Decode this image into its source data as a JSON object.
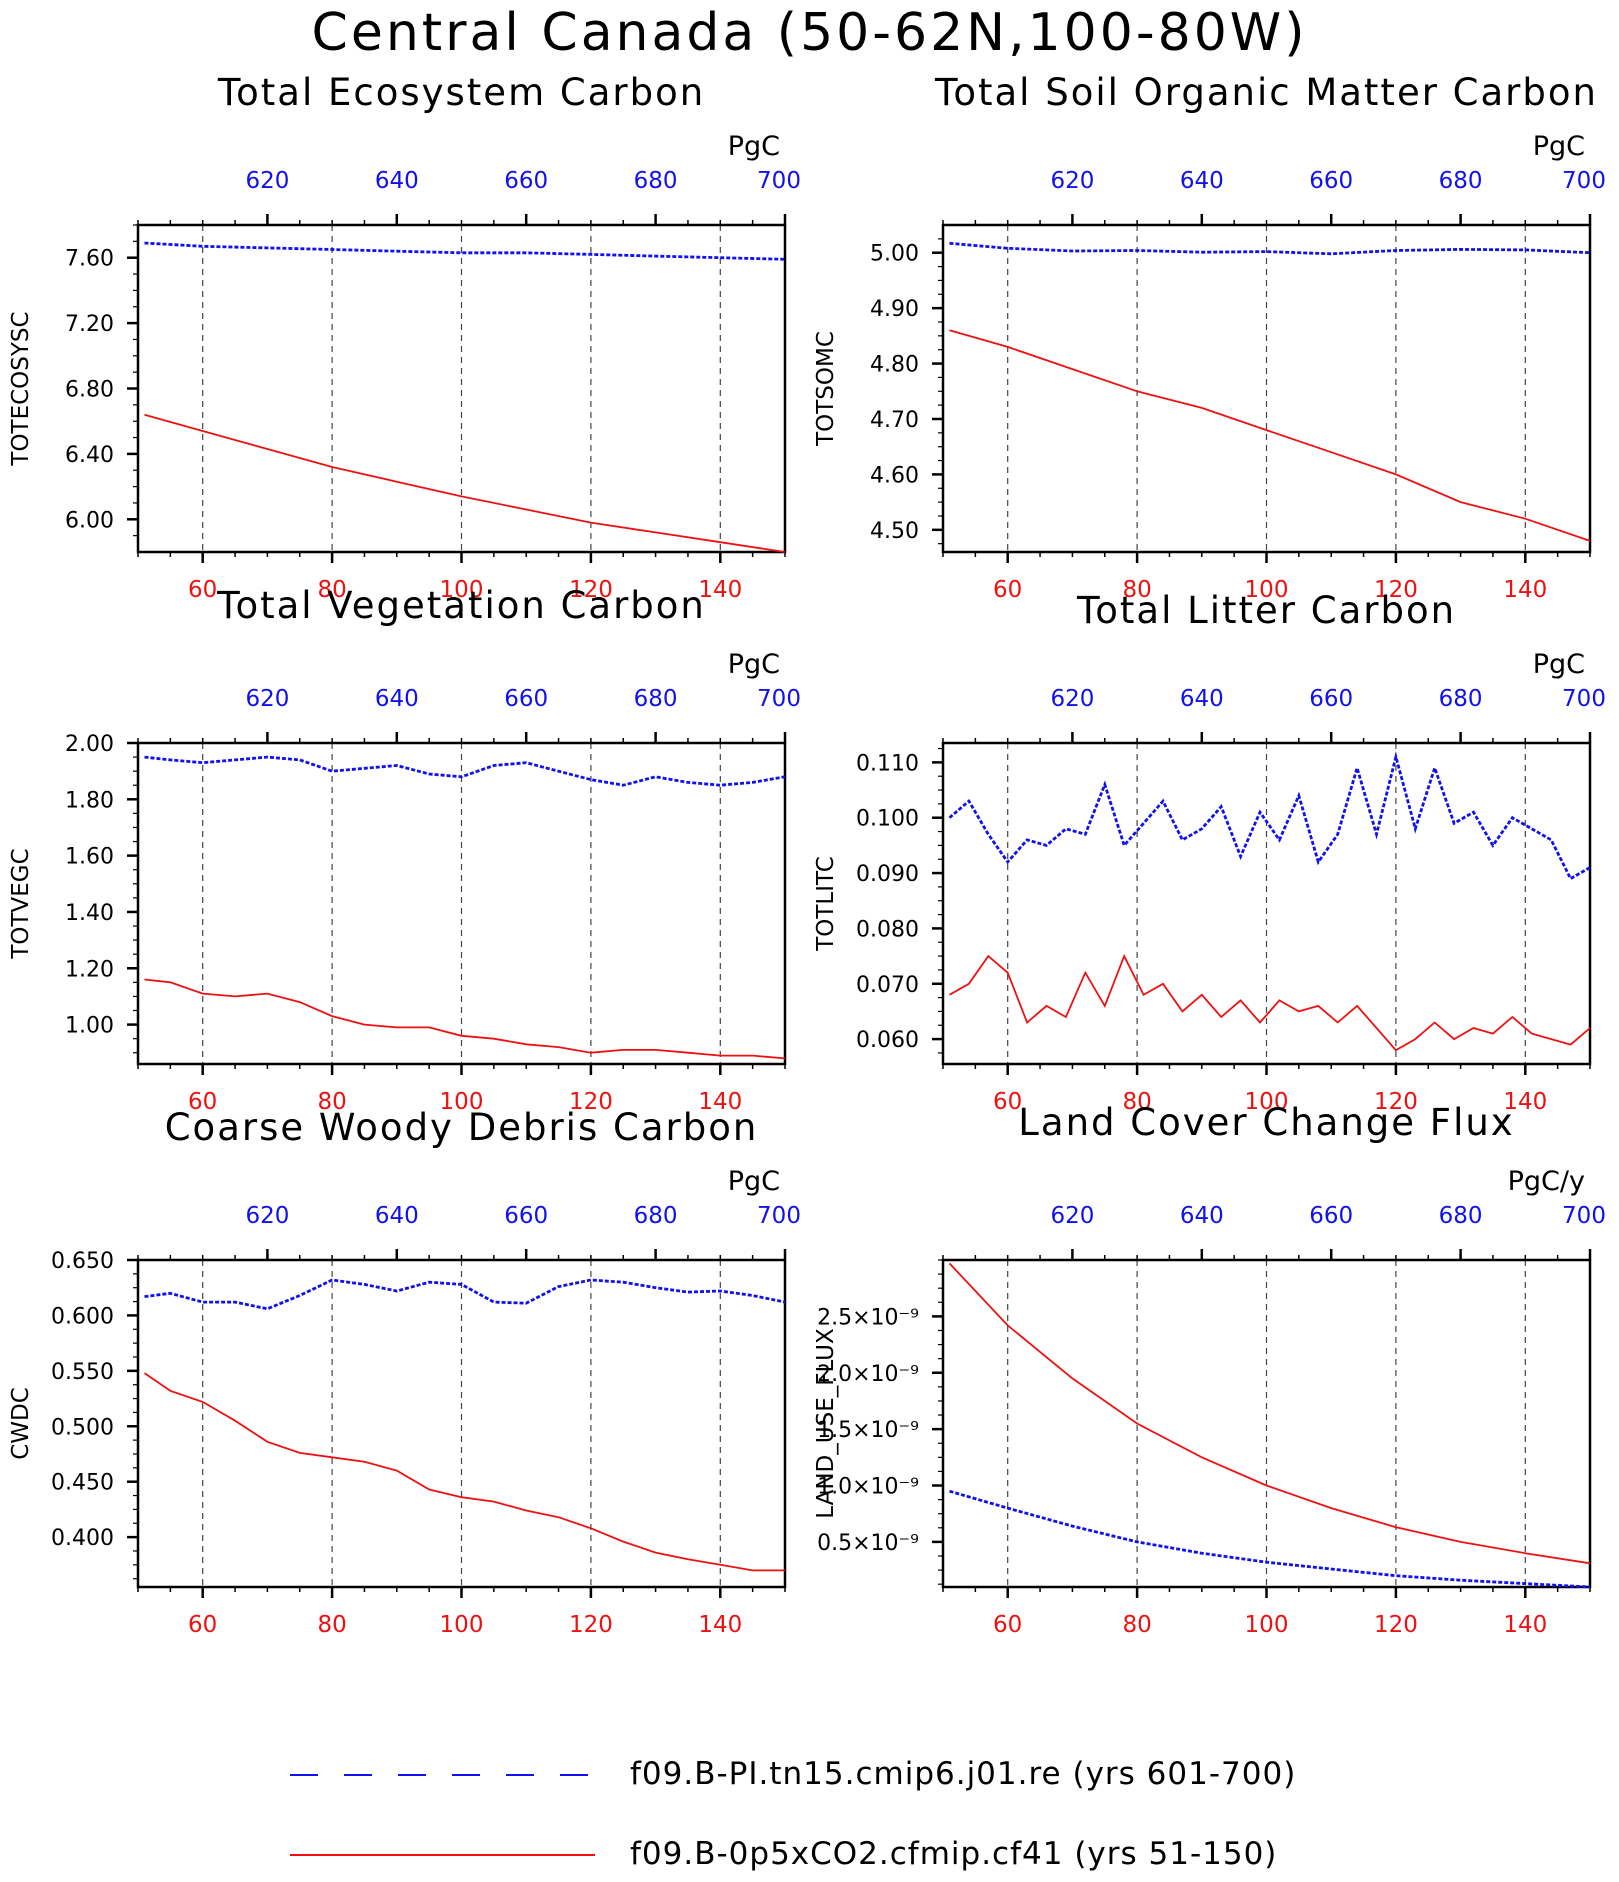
{
  "title": "Central Canada (50-62N,100-80W)",
  "colors": {
    "blue_series": "#1111ee",
    "red_series": "#ee1111",
    "grid": "#444444"
  },
  "legend": {
    "entries": [
      {
        "label": "f09.B-PI.tn15.cmip6.j01.re (yrs 601-700)",
        "color": "#1111ee",
        "style": "dashed"
      },
      {
        "label": "f09.B-0p5xCO2.cfmip.cf41 (yrs 51-150)",
        "color": "#ee1111",
        "style": "solid"
      }
    ]
  },
  "chart_data": [
    {
      "type": "line",
      "title": "Total Ecosystem Carbon",
      "ylabel": "TOTECOSYSC",
      "units": "PgC",
      "xlim": [
        50,
        150
      ],
      "top_xlim": [
        600,
        700
      ],
      "ylim": [
        5.8,
        7.8
      ],
      "yticks": [
        6.0,
        6.4,
        6.8,
        7.2,
        7.6
      ],
      "ytick_labels": [
        "6.00",
        "6.40",
        "6.80",
        "7.20",
        "7.60"
      ],
      "xticks": [
        60,
        80,
        100,
        120,
        140
      ],
      "top_xticks": [
        620,
        640,
        660,
        680,
        700
      ],
      "series": [
        {
          "color": "#1111ee",
          "style": "dashed",
          "x_axis": "top",
          "x": [
            601,
            610,
            620,
            630,
            640,
            650,
            660,
            670,
            680,
            690,
            700
          ],
          "y": [
            7.69,
            7.67,
            7.66,
            7.65,
            7.64,
            7.63,
            7.63,
            7.62,
            7.61,
            7.6,
            7.59
          ]
        },
        {
          "color": "#ee1111",
          "style": "solid",
          "x_axis": "bottom",
          "x": [
            51,
            60,
            70,
            80,
            90,
            100,
            110,
            120,
            130,
            140,
            150
          ],
          "y": [
            6.64,
            6.54,
            6.43,
            6.32,
            6.23,
            6.14,
            6.06,
            5.98,
            5.92,
            5.86,
            5.8
          ]
        }
      ]
    },
    {
      "type": "line",
      "title": "Total Soil Organic Matter Carbon",
      "ylabel": "TOTSOMC",
      "units": "PgC",
      "xlim": [
        50,
        150
      ],
      "top_xlim": [
        600,
        700
      ],
      "ylim": [
        4.46,
        5.05
      ],
      "yticks": [
        4.5,
        4.6,
        4.7,
        4.8,
        4.9,
        5.0
      ],
      "ytick_labels": [
        "4.50",
        "4.60",
        "4.70",
        "4.80",
        "4.90",
        "5.00"
      ],
      "xticks": [
        60,
        80,
        100,
        120,
        140
      ],
      "top_xticks": [
        620,
        640,
        660,
        680,
        700
      ],
      "series": [
        {
          "color": "#1111ee",
          "style": "dashed",
          "x_axis": "top",
          "x": [
            601,
            610,
            620,
            630,
            640,
            650,
            660,
            670,
            680,
            690,
            700
          ],
          "y": [
            5.017,
            5.008,
            5.003,
            5.004,
            5.001,
            5.002,
            4.998,
            5.004,
            5.006,
            5.005,
            5.0
          ]
        },
        {
          "color": "#ee1111",
          "style": "solid",
          "x_axis": "bottom",
          "x": [
            51,
            60,
            70,
            80,
            90,
            100,
            110,
            120,
            130,
            140,
            150
          ],
          "y": [
            4.86,
            4.83,
            4.79,
            4.75,
            4.72,
            4.68,
            4.64,
            4.6,
            4.55,
            4.52,
            4.48
          ]
        }
      ]
    },
    {
      "type": "line",
      "title": "Total Vegetation Carbon",
      "ylabel": "TOTVEGC",
      "units": "PgC",
      "xlim": [
        50,
        150
      ],
      "top_xlim": [
        600,
        700
      ],
      "ylim": [
        0.86,
        2.0
      ],
      "yticks": [
        1.0,
        1.2,
        1.4,
        1.6,
        1.8,
        2.0
      ],
      "ytick_labels": [
        "1.00",
        "1.20",
        "1.40",
        "1.60",
        "1.80",
        "2.00"
      ],
      "xticks": [
        60,
        80,
        100,
        120,
        140
      ],
      "top_xticks": [
        620,
        640,
        660,
        680,
        700
      ],
      "series": [
        {
          "color": "#1111ee",
          "style": "dashed",
          "x_axis": "top",
          "x": [
            601,
            605,
            610,
            615,
            620,
            625,
            630,
            635,
            640,
            645,
            650,
            655,
            660,
            665,
            670,
            675,
            680,
            685,
            690,
            695,
            700
          ],
          "y": [
            1.95,
            1.94,
            1.93,
            1.94,
            1.95,
            1.94,
            1.9,
            1.91,
            1.92,
            1.89,
            1.88,
            1.92,
            1.93,
            1.9,
            1.87,
            1.85,
            1.88,
            1.86,
            1.85,
            1.86,
            1.88
          ]
        },
        {
          "color": "#ee1111",
          "style": "solid",
          "x_axis": "bottom",
          "x": [
            51,
            55,
            60,
            65,
            70,
            75,
            80,
            85,
            90,
            95,
            100,
            105,
            110,
            115,
            120,
            125,
            130,
            135,
            140,
            145,
            150
          ],
          "y": [
            1.16,
            1.15,
            1.11,
            1.1,
            1.11,
            1.08,
            1.03,
            1.0,
            0.99,
            0.99,
            0.96,
            0.95,
            0.93,
            0.92,
            0.9,
            0.91,
            0.91,
            0.9,
            0.89,
            0.89,
            0.88
          ]
        }
      ]
    },
    {
      "type": "line",
      "title": "Total Litter Carbon",
      "ylabel": "TOTLITC",
      "units": "PgC",
      "xlim": [
        50,
        150
      ],
      "top_xlim": [
        600,
        700
      ],
      "ylim": [
        0.0555,
        0.1135
      ],
      "yticks": [
        0.06,
        0.07,
        0.08,
        0.09,
        0.1,
        0.11
      ],
      "ytick_labels": [
        "0.060",
        "0.070",
        "0.080",
        "0.090",
        "0.100",
        "0.110"
      ],
      "xticks": [
        60,
        80,
        100,
        120,
        140
      ],
      "top_xticks": [
        620,
        640,
        660,
        680,
        700
      ],
      "series": [
        {
          "color": "#1111ee",
          "style": "dashed",
          "x_axis": "top",
          "x": [
            601,
            604,
            607,
            610,
            613,
            616,
            619,
            622,
            625,
            628,
            631,
            634,
            637,
            640,
            643,
            646,
            649,
            652,
            655,
            658,
            661,
            664,
            667,
            670,
            673,
            676,
            679,
            682,
            685,
            688,
            691,
            694,
            697,
            700
          ],
          "y": [
            0.1,
            0.103,
            0.097,
            0.092,
            0.096,
            0.095,
            0.098,
            0.097,
            0.106,
            0.095,
            0.099,
            0.103,
            0.096,
            0.098,
            0.102,
            0.093,
            0.101,
            0.096,
            0.104,
            0.092,
            0.097,
            0.109,
            0.097,
            0.111,
            0.098,
            0.109,
            0.099,
            0.101,
            0.095,
            0.1,
            0.098,
            0.096,
            0.089,
            0.091
          ]
        },
        {
          "color": "#ee1111",
          "style": "solid",
          "x_axis": "bottom",
          "x": [
            51,
            54,
            57,
            60,
            63,
            66,
            69,
            72,
            75,
            78,
            81,
            84,
            87,
            90,
            93,
            96,
            99,
            102,
            105,
            108,
            111,
            114,
            117,
            120,
            123,
            126,
            129,
            132,
            135,
            138,
            141,
            144,
            147,
            150
          ],
          "y": [
            0.068,
            0.07,
            0.075,
            0.072,
            0.063,
            0.066,
            0.064,
            0.072,
            0.066,
            0.075,
            0.068,
            0.07,
            0.065,
            0.068,
            0.064,
            0.067,
            0.063,
            0.067,
            0.065,
            0.066,
            0.063,
            0.066,
            0.062,
            0.058,
            0.06,
            0.063,
            0.06,
            0.062,
            0.061,
            0.064,
            0.061,
            0.06,
            0.059,
            0.062
          ]
        }
      ]
    },
    {
      "type": "line",
      "title": "Coarse Woody Debris Carbon",
      "ylabel": "CWDC",
      "units": "PgC",
      "xlim": [
        50,
        150
      ],
      "top_xlim": [
        600,
        700
      ],
      "ylim": [
        0.355,
        0.65
      ],
      "yticks": [
        0.4,
        0.45,
        0.5,
        0.55,
        0.6,
        0.65
      ],
      "ytick_labels": [
        "0.400",
        "0.450",
        "0.500",
        "0.550",
        "0.600",
        "0.650"
      ],
      "xticks": [
        60,
        80,
        100,
        120,
        140
      ],
      "top_xticks": [
        620,
        640,
        660,
        680,
        700
      ],
      "series": [
        {
          "color": "#1111ee",
          "style": "dashed",
          "x_axis": "top",
          "x": [
            601,
            605,
            610,
            615,
            620,
            625,
            630,
            635,
            640,
            645,
            650,
            655,
            660,
            665,
            670,
            675,
            680,
            685,
            690,
            695,
            700
          ],
          "y": [
            0.617,
            0.62,
            0.612,
            0.612,
            0.606,
            0.618,
            0.632,
            0.628,
            0.622,
            0.63,
            0.628,
            0.612,
            0.611,
            0.626,
            0.632,
            0.63,
            0.625,
            0.621,
            0.622,
            0.618,
            0.612
          ]
        },
        {
          "color": "#ee1111",
          "style": "solid",
          "x_axis": "bottom",
          "x": [
            51,
            55,
            60,
            65,
            70,
            75,
            80,
            85,
            90,
            95,
            100,
            105,
            110,
            115,
            120,
            125,
            130,
            135,
            140,
            145,
            150
          ],
          "y": [
            0.548,
            0.532,
            0.522,
            0.505,
            0.486,
            0.476,
            0.472,
            0.468,
            0.46,
            0.443,
            0.436,
            0.432,
            0.424,
            0.418,
            0.408,
            0.396,
            0.386,
            0.38,
            0.375,
            0.37,
            0.37
          ]
        }
      ]
    },
    {
      "type": "line",
      "title": "Land Cover Change Flux",
      "ylabel": "LAND_USE_FLUX",
      "units": "PgC/y",
      "xlim": [
        50,
        150
      ],
      "top_xlim": [
        600,
        700
      ],
      "ylim": [
        1e-10,
        3e-09
      ],
      "yticks": [
        5e-10,
        1e-09,
        1.5e-09,
        2e-09,
        2.5e-09
      ],
      "ytick_labels": [
        "0.5×10⁻⁹",
        "1.0×10⁻⁹",
        "1.5×10⁻⁹",
        "2.0×10⁻⁹",
        "2.5×10⁻⁹"
      ],
      "xticks": [
        60,
        80,
        100,
        120,
        140
      ],
      "top_xticks": [
        620,
        640,
        660,
        680,
        700
      ],
      "series": [
        {
          "color": "#1111ee",
          "style": "dashed",
          "x_axis": "top",
          "x": [
            601,
            610,
            620,
            630,
            640,
            650,
            660,
            670,
            680,
            690,
            700
          ],
          "y": [
            9.5e-10,
            8e-10,
            6.4e-10,
            5e-10,
            4e-10,
            3.2e-10,
            2.6e-10,
            2e-10,
            1.6e-10,
            1.3e-10,
            1e-10
          ]
        },
        {
          "color": "#ee1111",
          "style": "solid",
          "x_axis": "bottom",
          "x": [
            51,
            60,
            70,
            80,
            90,
            100,
            110,
            120,
            130,
            140,
            150
          ],
          "y": [
            2.97e-09,
            2.42e-09,
            1.95e-09,
            1.55e-09,
            1.25e-09,
            1e-09,
            8e-10,
            6.3e-10,
            5e-10,
            4e-10,
            3.1e-10
          ]
        }
      ]
    }
  ]
}
